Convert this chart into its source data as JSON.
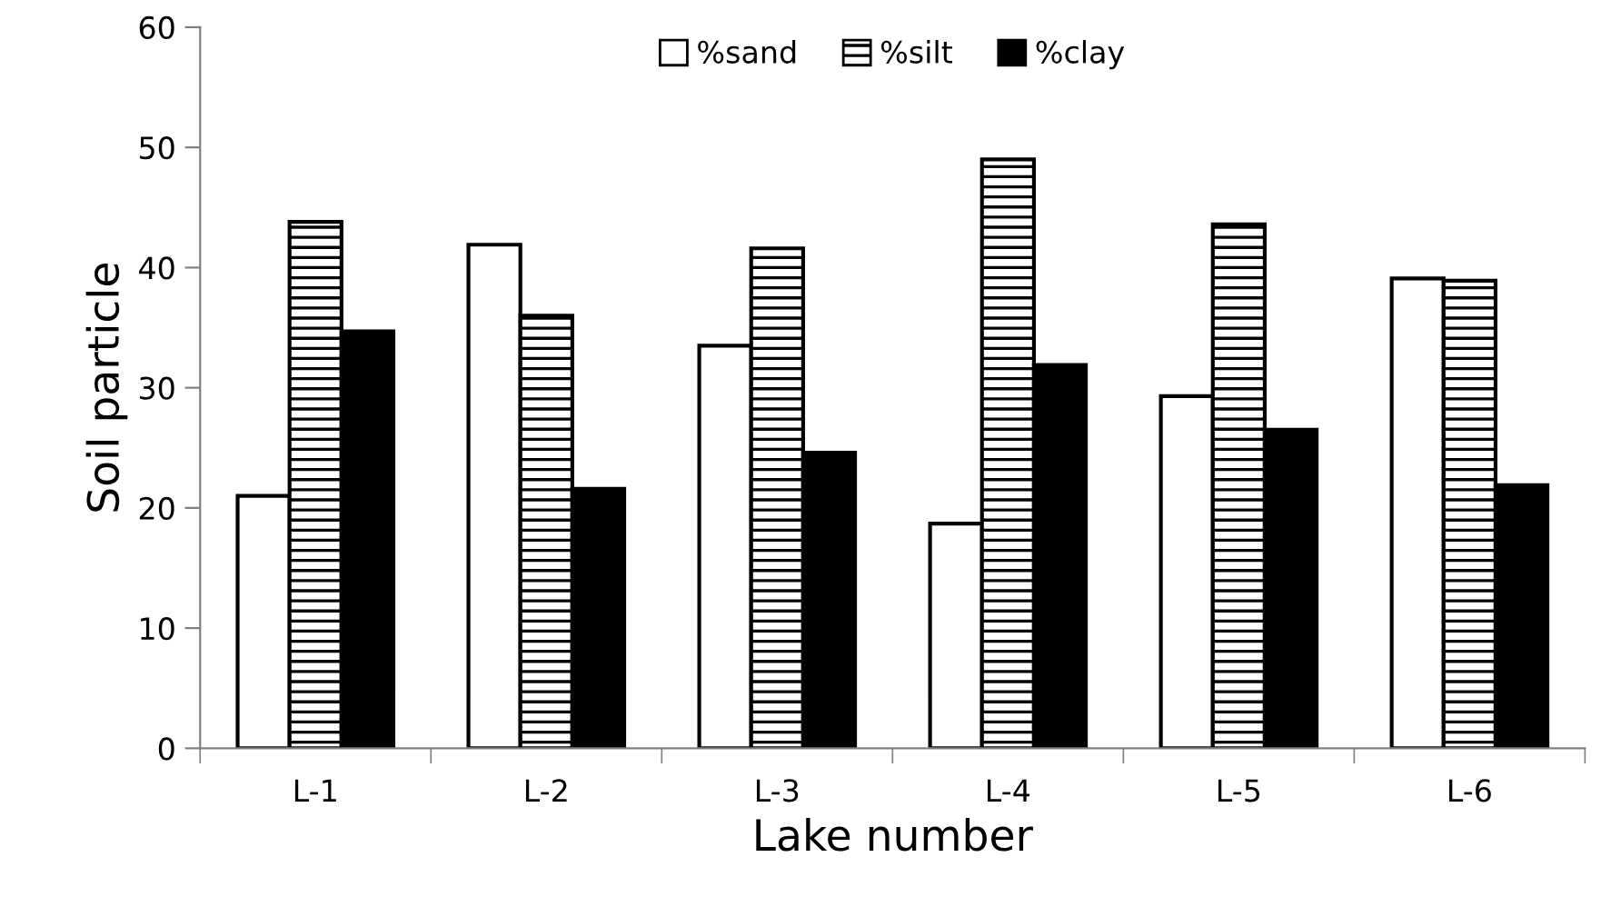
{
  "chart_data": {
    "type": "bar",
    "xlabel": "Lake number",
    "ylabel": "Soil particle",
    "categories": [
      "L-1",
      "L-2",
      "L-3",
      "L-4",
      "L-5",
      "L-6"
    ],
    "series": [
      {
        "name": "%sand",
        "color": "#ffffff",
        "values": [
          21.0,
          41.9,
          33.5,
          18.7,
          29.3,
          39.1
        ]
      },
      {
        "name": "%silt",
        "color": "#000000",
        "values": [
          43.8,
          36.0,
          41.6,
          49.0,
          43.6,
          38.9
        ]
      },
      {
        "name": "%clay",
        "color": "#000001",
        "values": [
          34.7,
          21.6,
          24.6,
          31.9,
          26.5,
          21.9
        ]
      }
    ],
    "ylim": [
      0,
      60
    ],
    "yticks": [
      0,
      10,
      20,
      30,
      40,
      50,
      60
    ],
    "grid": false,
    "legend": "top"
  }
}
